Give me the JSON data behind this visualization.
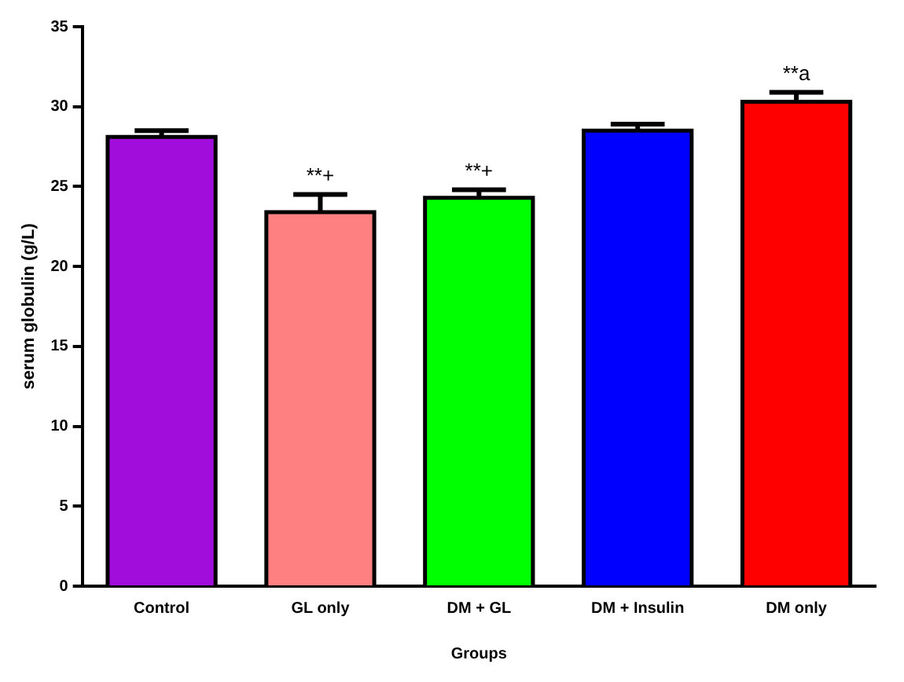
{
  "chart_data": {
    "type": "bar",
    "xlabel": "Groups",
    "ylabel": "serum globulin (g/L)",
    "categories": [
      "Control",
      "GL only",
      "DM + GL",
      "DM + Insulin",
      "DM only"
    ],
    "values": [
      28.1,
      23.4,
      24.3,
      28.5,
      30.3
    ],
    "colors": [
      "#a10ddb",
      "#ff8080",
      "#00ff00",
      "#0000ff",
      "#ff0000"
    ],
    "errors": [
      [
        28.1,
        28.5
      ],
      [
        23.4,
        24.5
      ],
      [
        24.3,
        24.8
      ],
      [
        28.5,
        28.9
      ],
      [
        30.3,
        30.9
      ]
    ],
    "ylim": [
      0,
      35
    ],
    "yticks": [
      0,
      5,
      10,
      15,
      20,
      25,
      30,
      35
    ],
    "grid": false,
    "legend": false,
    "annotations": [
      {
        "text": "**+",
        "x": "GL only",
        "y": 24.5
      },
      {
        "text": "**+",
        "x": "DM + GL",
        "y": 24.8
      },
      {
        "text": "**a",
        "x": "DM only",
        "y": 30.9
      }
    ]
  }
}
